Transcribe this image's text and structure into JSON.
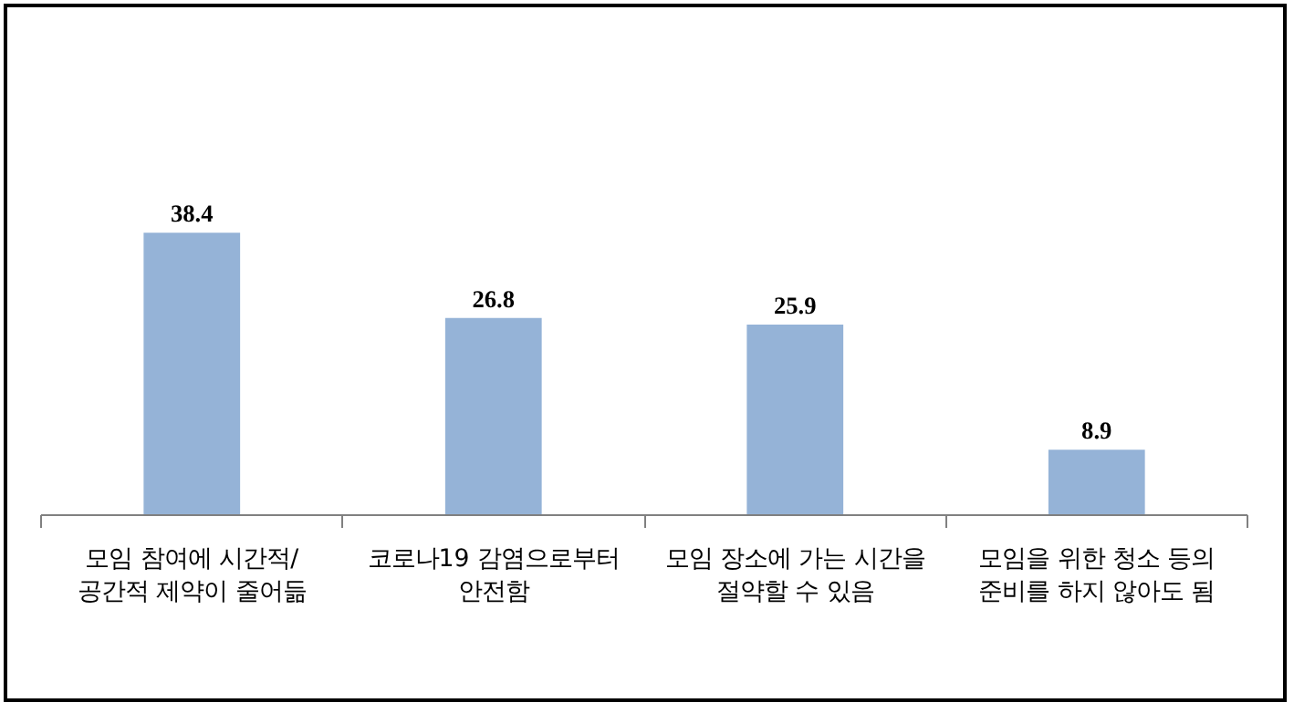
{
  "chart_data": {
    "type": "bar",
    "categories": [
      "모임 참여에 시간적/\n공간적 제약이 줄어듦",
      "코로나19 감염으로부터\n안전함",
      "모임 장소에 가는 시간을\n절약할 수 있음",
      "모임을 위한 청소 등의\n준비를 하지 않아도 됨"
    ],
    "values": [
      38.4,
      26.8,
      25.9,
      8.9
    ],
    "color": "#95b3d7",
    "data_labels": true
  }
}
